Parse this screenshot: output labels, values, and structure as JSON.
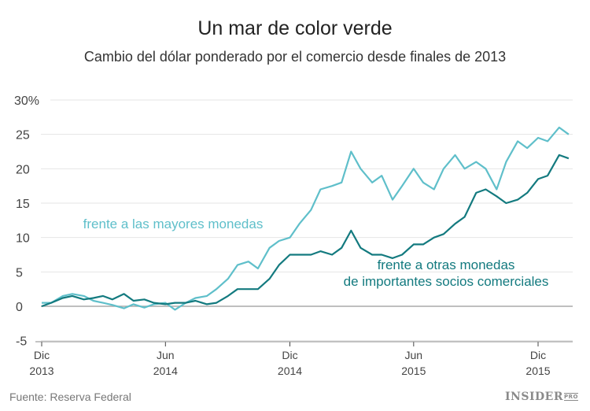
{
  "chart_data": {
    "type": "line",
    "title": "Un mar de color verde",
    "subtitle": "Cambio del dólar ponderado por el comercio desde finales de 2013",
    "source": "Fuente: Reserva Federal",
    "logo": "INSIDER PRO",
    "ylim": [
      -5,
      30
    ],
    "yticks": [
      30,
      25,
      20,
      15,
      10,
      5,
      0,
      -5
    ],
    "ytick_labels": [
      "30%",
      "25",
      "20",
      "15",
      "10",
      "5",
      "0",
      "-5"
    ],
    "xticks": [
      {
        "date": "2013-12-01",
        "line1": "Dic",
        "line2": "2013"
      },
      {
        "date": "2014-06-01",
        "line1": "Jun",
        "line2": "2014"
      },
      {
        "date": "2014-12-01",
        "line1": "Dic",
        "line2": "2014"
      },
      {
        "date": "2015-06-01",
        "line1": "Jun",
        "line2": "2015"
      },
      {
        "date": "2015-12-01",
        "line1": "Dic",
        "line2": "2015"
      }
    ],
    "xlim": [
      "2013-11-20",
      "2016-02-20"
    ],
    "grid": true,
    "x": [
      "2013-12-01",
      "2013-12-15",
      "2014-01-01",
      "2014-01-15",
      "2014-02-01",
      "2014-02-15",
      "2014-03-01",
      "2014-03-15",
      "2014-04-01",
      "2014-04-15",
      "2014-05-01",
      "2014-05-15",
      "2014-06-01",
      "2014-06-15",
      "2014-07-01",
      "2014-07-15",
      "2014-08-01",
      "2014-08-15",
      "2014-09-01",
      "2014-09-15",
      "2014-10-01",
      "2014-10-15",
      "2014-11-01",
      "2014-11-15",
      "2014-12-01",
      "2014-12-15",
      "2015-01-01",
      "2015-01-15",
      "2015-02-01",
      "2015-02-15",
      "2015-03-01",
      "2015-03-15",
      "2015-04-01",
      "2015-04-15",
      "2015-05-01",
      "2015-05-15",
      "2015-06-01",
      "2015-06-15",
      "2015-07-01",
      "2015-07-15",
      "2015-08-01",
      "2015-08-15",
      "2015-09-01",
      "2015-09-15",
      "2015-10-01",
      "2015-10-15",
      "2015-11-01",
      "2015-11-15",
      "2015-12-01",
      "2015-12-15",
      "2016-01-01",
      "2016-01-15"
    ],
    "series": [
      {
        "name": "frente a las mayores monedas",
        "color": "#5fbfca",
        "values": [
          0.5,
          0.5,
          1.5,
          1.8,
          1.5,
          0.8,
          0.5,
          0.2,
          -0.3,
          0.3,
          -0.2,
          0.3,
          0.5,
          -0.5,
          0.5,
          1.2,
          1.5,
          2.5,
          4,
          6,
          6.5,
          5.5,
          8.5,
          9.5,
          10,
          12,
          14,
          17,
          17.5,
          18,
          22.5,
          20,
          18,
          19,
          15.5,
          17.5,
          20,
          18,
          17,
          20,
          22,
          20,
          21,
          20,
          17,
          21,
          24,
          23,
          24.5,
          24,
          26,
          25
        ]
      },
      {
        "name": "frente a otras monedas de importantes socios comerciales",
        "name_line1": "frente a otras monedas",
        "name_line2": "de importantes socios comerciales",
        "color": "#137a7f",
        "values": [
          0,
          0.5,
          1.2,
          1.5,
          1,
          1.2,
          1.5,
          1,
          1.8,
          0.8,
          1,
          0.5,
          0.3,
          0.5,
          0.5,
          0.8,
          0.3,
          0.5,
          1.5,
          2.5,
          2.5,
          2.5,
          4,
          6,
          7.5,
          7.5,
          7.5,
          8,
          7.5,
          8.5,
          11,
          8.5,
          7.5,
          7.5,
          7,
          7.5,
          9,
          9,
          10,
          10.5,
          12,
          13,
          16.5,
          17,
          16,
          15,
          15.5,
          16.5,
          18.5,
          19,
          22,
          21.5
        ]
      }
    ]
  }
}
